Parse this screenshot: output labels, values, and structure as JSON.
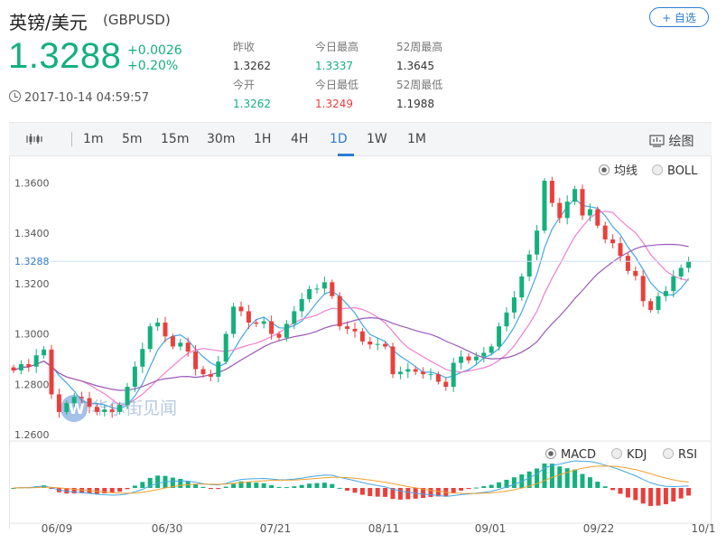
{
  "header": {
    "title": "英镑/美元",
    "code": "(GBPUSD)",
    "add_button": "+ 自选"
  },
  "quote": {
    "price": "1.3288",
    "change": "+0.0026",
    "change_pct": "+0.20%",
    "timestamp": "2017-10-14 04:59:57"
  },
  "stats": [
    {
      "label": "昨收",
      "value": "1.3262",
      "color": "#333333"
    },
    {
      "label": "今日最高",
      "value": "1.3337",
      "color": "#14b07c"
    },
    {
      "label": "52周最高",
      "value": "1.3645",
      "color": "#333333"
    },
    {
      "label": "今开",
      "value": "1.3262",
      "color": "#14b07c"
    },
    {
      "label": "今日最低",
      "value": "1.3249",
      "color": "#e8403d"
    },
    {
      "label": "52周最低",
      "value": "1.1988",
      "color": "#333333"
    }
  ],
  "toolbar": {
    "periods": [
      "1m",
      "5m",
      "15m",
      "30m",
      "1H",
      "4H",
      "1D",
      "1W",
      "1M"
    ],
    "active": "1D",
    "draw_label": "绘图"
  },
  "indicator_options": {
    "main": [
      "均线",
      "BOLL"
    ],
    "main_selected": "均线",
    "sub": [
      "MACD",
      "KDJ",
      "RSI"
    ],
    "sub_selected": "MACD"
  },
  "watermark": "华尔街见闻",
  "colors": {
    "up": "#14b07c",
    "down": "#e8403d",
    "ma_fast": "#46a6e6",
    "ma_mid": "#f07fd0",
    "ma_slow": "#9b59b6",
    "accent": "#2b7cd3"
  },
  "chart_data": {
    "type": "candlestick",
    "y_ticks": [
      "1.3600",
      "1.3400",
      "1.3200",
      "1.3000",
      "1.2800",
      "1.2600"
    ],
    "ylim": [
      1.2575,
      1.3705
    ],
    "current_price": "1.3288",
    "x_labels": [
      "06/09",
      "06/30",
      "07/21",
      "08/11",
      "09/01",
      "09/22",
      "10/1"
    ],
    "closes": [
      1.2855,
      1.288,
      1.287,
      1.2915,
      1.2938,
      1.276,
      1.269,
      1.2725,
      1.275,
      1.2745,
      1.271,
      1.269,
      1.27,
      1.269,
      1.2718,
      1.279,
      1.287,
      1.294,
      1.303,
      1.3045,
      1.299,
      1.295,
      1.2965,
      1.293,
      1.286,
      1.284,
      1.283,
      1.289,
      1.3,
      1.3108,
      1.309,
      1.3045,
      1.304,
      1.305,
      1.3,
      1.2985,
      1.304,
      1.309,
      1.3138,
      1.3178,
      1.318,
      1.3205,
      1.315,
      1.303,
      1.302,
      1.301,
      1.297,
      1.2958,
      1.296,
      1.295,
      1.284,
      1.285,
      1.286,
      1.285,
      1.284,
      1.284,
      1.281,
      1.279,
      1.2885,
      1.291,
      1.2895,
      1.291,
      1.2925,
      1.295,
      1.303,
      1.3085,
      1.3145,
      1.3228,
      1.3315,
      1.341,
      1.3608,
      1.352,
      1.346,
      1.3525,
      1.3575,
      1.347,
      1.3495,
      1.343,
      1.3375,
      1.336,
      1.331,
      1.325,
      1.323,
      1.313,
      1.3095,
      1.315,
      1.317,
      1.3228,
      1.3262,
      1.3288
    ]
  }
}
